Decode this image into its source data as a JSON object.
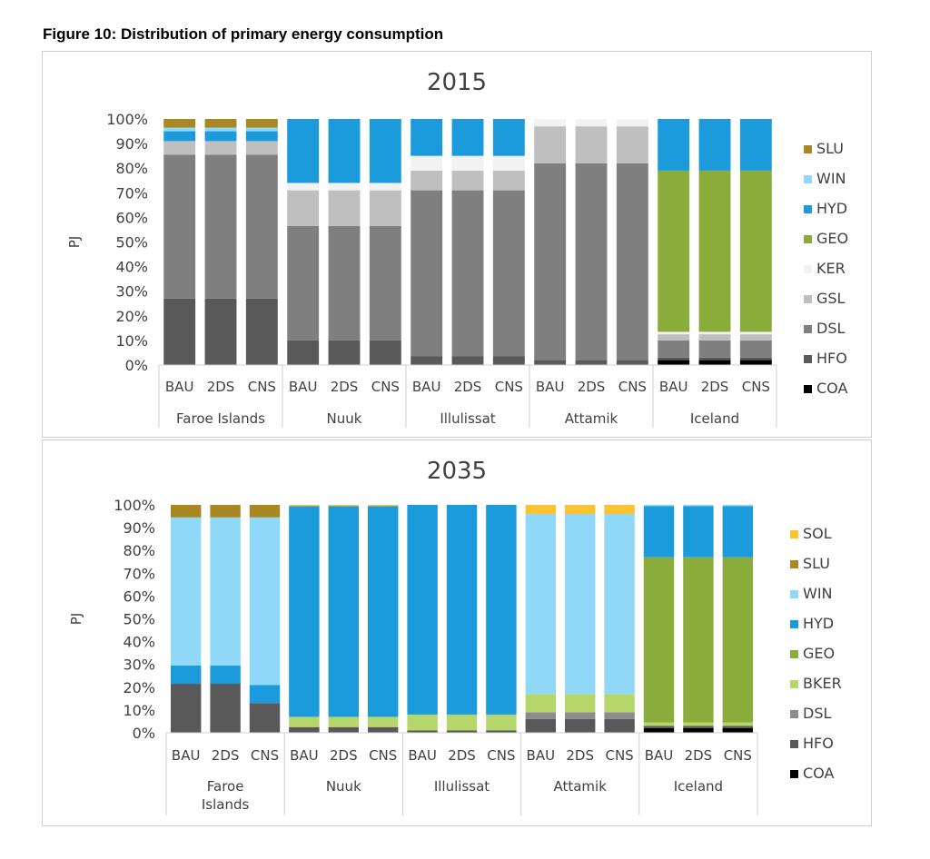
{
  "figure_title": "Figure 10: Distribution of primary energy consumption",
  "chart_data": [
    {
      "type": "bar",
      "stacked": true,
      "normalized": true,
      "title": "2015",
      "ylabel": "PJ",
      "ylim": [
        0,
        100
      ],
      "yticks": [
        "0%",
        "10%",
        "20%",
        "30%",
        "40%",
        "50%",
        "60%",
        "70%",
        "80%",
        "90%",
        "100%"
      ],
      "groups": [
        {
          "name": "Faroe Islands",
          "categories": [
            "BAU",
            "2DS",
            "CNS"
          ]
        },
        {
          "name": "Nuuk",
          "categories": [
            "BAU",
            "2DS",
            "CNS"
          ]
        },
        {
          "name": "Illulissat",
          "categories": [
            "BAU",
            "2DS",
            "CNS"
          ]
        },
        {
          "name": "Attamik",
          "categories": [
            "BAU",
            "2DS",
            "CNS"
          ]
        },
        {
          "name": "Iceland",
          "categories": [
            "BAU",
            "2DS",
            "CNS"
          ]
        }
      ],
      "series": [
        {
          "name": "COA",
          "color": "#000000",
          "values": [
            0,
            0,
            0,
            0,
            0,
            0,
            0,
            0,
            0,
            0,
            0,
            0,
            2,
            2,
            2
          ]
        },
        {
          "name": "HFO",
          "color": "#595959",
          "values": [
            27,
            27,
            27,
            10,
            10,
            10,
            3.5,
            3.5,
            3.5,
            2,
            2,
            2,
            1,
            1,
            1
          ]
        },
        {
          "name": "DSL",
          "color": "#7f7f7f",
          "values": [
            58.5,
            58.5,
            58.5,
            46.5,
            46.5,
            46.5,
            67.5,
            67.5,
            67.5,
            80,
            80,
            80,
            7,
            7,
            7
          ]
        },
        {
          "name": "GSL",
          "color": "#bfbfbf",
          "values": [
            5.5,
            5.5,
            5.5,
            14.5,
            14.5,
            14.5,
            8,
            8,
            8,
            15,
            15,
            15,
            2.5,
            2.5,
            2.5
          ]
        },
        {
          "name": "KER",
          "color": "#f2f2f2",
          "values": [
            0,
            0,
            0,
            3,
            3,
            3,
            6,
            6,
            6,
            3,
            3,
            3,
            1,
            1,
            1
          ]
        },
        {
          "name": "GEO",
          "color": "#8aac3b",
          "values": [
            0,
            0,
            0,
            0,
            0,
            0,
            0,
            0,
            0,
            0,
            0,
            0,
            65.5,
            65.5,
            65.5
          ]
        },
        {
          "name": "HYD",
          "color": "#1b9bdb",
          "values": [
            4,
            4,
            4,
            26,
            26,
            26,
            15,
            15,
            15,
            0,
            0,
            0,
            21,
            21,
            21
          ]
        },
        {
          "name": "WIN",
          "color": "#8fd8f8",
          "values": [
            1.5,
            1.5,
            1.5,
            0,
            0,
            0,
            0,
            0,
            0,
            0,
            0,
            0,
            0,
            0,
            0
          ]
        },
        {
          "name": "SLU",
          "color": "#a98824",
          "values": [
            3.5,
            3.5,
            3.5,
            0,
            0,
            0,
            0,
            0,
            0,
            0,
            0,
            0,
            0,
            0,
            0
          ]
        }
      ],
      "legend": [
        "SLU",
        "WIN",
        "HYD",
        "GEO",
        "KER",
        "GSL",
        "DSL",
        "HFO",
        "COA"
      ],
      "legend_position": "right"
    },
    {
      "type": "bar",
      "stacked": true,
      "normalized": true,
      "title": "2035",
      "ylabel": "PJ",
      "ylim": [
        0,
        100
      ],
      "yticks": [
        "0%",
        "10%",
        "20%",
        "30%",
        "40%",
        "50%",
        "60%",
        "70%",
        "80%",
        "90%",
        "100%"
      ],
      "groups": [
        {
          "name": "Faroe Islands",
          "categories": [
            "BAU",
            "2DS",
            "CNS"
          ]
        },
        {
          "name": "Nuuk",
          "categories": [
            "BAU",
            "2DS",
            "CNS"
          ]
        },
        {
          "name": "Illulissat",
          "categories": [
            "BAU",
            "2DS",
            "CNS"
          ]
        },
        {
          "name": "Attamik",
          "categories": [
            "BAU",
            "2DS",
            "CNS"
          ]
        },
        {
          "name": "Iceland",
          "categories": [
            "BAU",
            "2DS",
            "CNS"
          ]
        }
      ],
      "series": [
        {
          "name": "COA",
          "color": "#000000",
          "values": [
            0,
            0,
            0,
            0,
            0,
            0,
            0,
            0,
            0,
            0,
            0,
            0,
            2,
            2,
            2
          ]
        },
        {
          "name": "HFO",
          "color": "#595959",
          "values": [
            21.5,
            21.5,
            13,
            2.5,
            2.5,
            2.5,
            1,
            1,
            1,
            6,
            6,
            6,
            1,
            1,
            1
          ]
        },
        {
          "name": "DSL",
          "color": "#8c8c8c",
          "values": [
            0,
            0,
            0,
            0,
            0,
            0,
            0,
            0,
            0,
            3,
            3,
            3,
            0,
            0,
            0
          ]
        },
        {
          "name": "BKER",
          "color": "#b4d66a",
          "values": [
            0,
            0,
            0,
            4.5,
            4.5,
            4.5,
            7,
            7,
            7,
            8,
            8,
            8,
            1.5,
            1.5,
            1.5
          ]
        },
        {
          "name": "GEO",
          "color": "#8aac3b",
          "values": [
            0,
            0,
            0,
            0,
            0,
            0,
            0,
            0,
            0,
            0,
            0,
            0,
            72.5,
            72.5,
            72.5
          ]
        },
        {
          "name": "HYD",
          "color": "#1b9bdb",
          "values": [
            8,
            8,
            8,
            92.5,
            92.5,
            92.5,
            92,
            92,
            92,
            0,
            0,
            0,
            22.5,
            22.5,
            22.5
          ]
        },
        {
          "name": "WIN",
          "color": "#8fd8f8",
          "values": [
            65,
            65,
            73.5,
            0,
            0,
            0,
            0,
            0,
            0,
            79,
            79,
            79,
            0.5,
            0.5,
            0.5
          ]
        },
        {
          "name": "SLU",
          "color": "#a98824",
          "values": [
            5.5,
            5.5,
            5.5,
            0,
            0,
            0,
            0,
            0,
            0,
            0,
            0,
            0,
            0,
            0,
            0
          ]
        },
        {
          "name": "SOL",
          "color": "#f9c331",
          "values": [
            0,
            0,
            0,
            0.5,
            0.5,
            0.5,
            0,
            0,
            0,
            4,
            4,
            4,
            0,
            0,
            0
          ]
        }
      ],
      "legend": [
        "SOL",
        "SLU",
        "WIN",
        "HYD",
        "GEO",
        "BKER",
        "DSL",
        "HFO",
        "COA"
      ],
      "legend_position": "right"
    }
  ]
}
